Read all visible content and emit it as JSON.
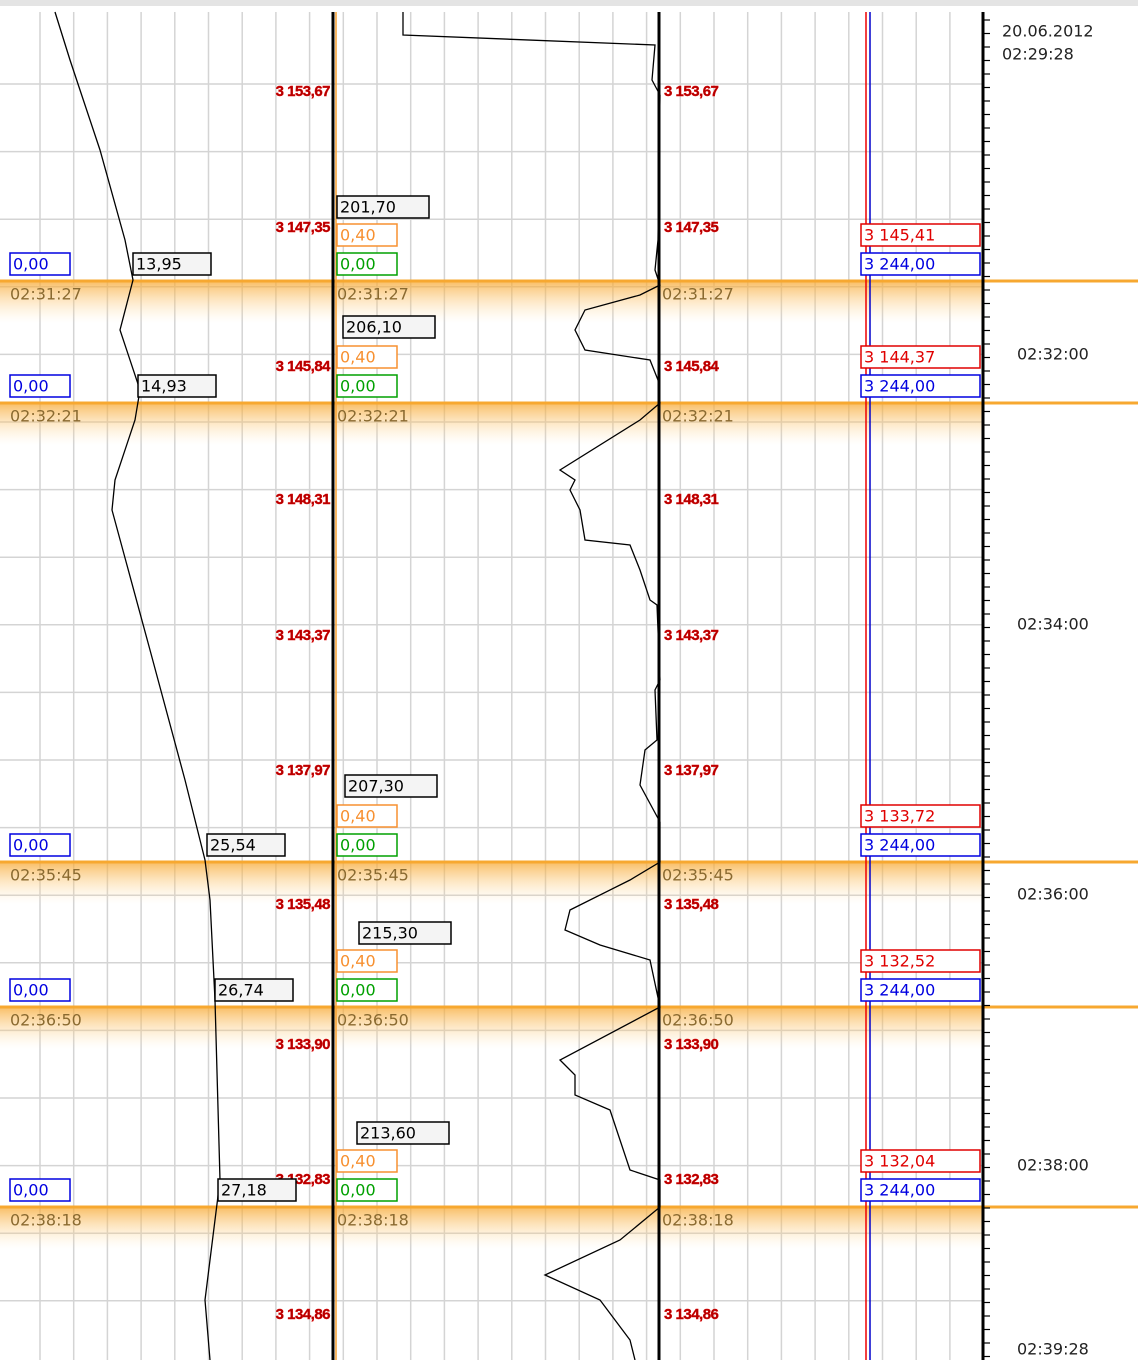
{
  "time_axis": {
    "date": "20.06.2012",
    "labels": [
      "02:29:28",
      "02:32:00",
      "02:34:00",
      "02:36:00",
      "02:38:00",
      "02:39:28"
    ]
  },
  "price_labels": [
    "3 153,67",
    "3 147,35",
    "3 145,84",
    "3 148,31",
    "3 143,37",
    "3 137,97",
    "3 135,48",
    "3 133,90",
    "3 132,83",
    "3 134,86"
  ],
  "events": [
    {
      "time": "02:31:27",
      "left_value": "0,00",
      "marker": "13,95",
      "volume": "201,70",
      "step": "0,40",
      "change": "0,00",
      "price": "3 145,41",
      "level": "3 244,00"
    },
    {
      "time": "02:32:21",
      "left_value": "0,00",
      "marker": "14,93",
      "volume": "206,10",
      "step": "0,40",
      "change": "0,00",
      "price": "3 144,37",
      "level": "3 244,00"
    },
    {
      "time": "02:35:45",
      "left_value": "0,00",
      "marker": "25,54",
      "volume": "207,30",
      "step": "0,40",
      "change": "0,00",
      "price": "3 133,72",
      "level": "3 244,00"
    },
    {
      "time": "02:36:50",
      "left_value": "0,00",
      "marker": "26,74",
      "volume": "215,30",
      "step": "0,40",
      "change": "0,00",
      "price": "3 132,52",
      "level": "3 244,00"
    },
    {
      "time": "02:38:18",
      "left_value": "0,00",
      "marker": "27,18",
      "volume": "213,60",
      "step": "0,40",
      "change": "0,00",
      "price": "3 132,04",
      "level": "3 244,00"
    }
  ]
}
